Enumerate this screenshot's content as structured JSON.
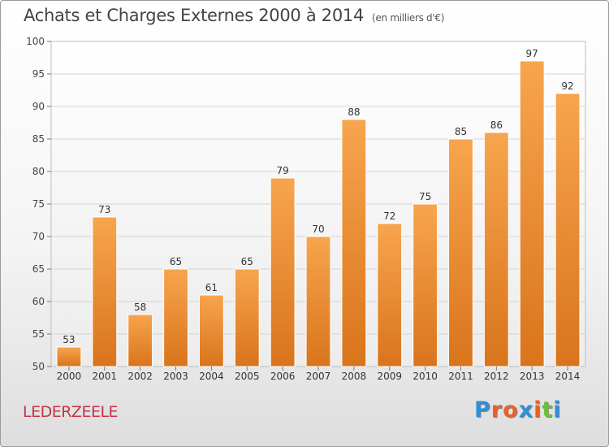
{
  "header": {
    "title": "Achats et Charges Externes 2000 à 2014",
    "subtitle": "(en milliers d'€)"
  },
  "commune": "LEDERZEELE",
  "logo": {
    "text": "Proxiti",
    "letter_colors": [
      "#2f8fd8",
      "#e8622a",
      "#e8622a",
      "#2f8fd8",
      "#e8622a",
      "#6cbf3a",
      "#2f8fd8"
    ]
  },
  "chart_data": {
    "type": "bar",
    "title": "Achats et Charges Externes 2000 à 2014",
    "subtitle": "(en milliers d'€)",
    "categories": [
      "2000",
      "2001",
      "2002",
      "2003",
      "2004",
      "2005",
      "2006",
      "2007",
      "2008",
      "2009",
      "2010",
      "2011",
      "2012",
      "2013",
      "2014"
    ],
    "values": [
      53,
      73,
      58,
      65,
      61,
      65,
      79,
      70,
      88,
      72,
      75,
      85,
      86,
      97,
      92
    ],
    "ylim": [
      50,
      100
    ],
    "yticks": [
      50,
      55,
      60,
      65,
      70,
      75,
      80,
      85,
      90,
      95,
      100
    ],
    "grid": true,
    "bar_color_top": "#f7a54e",
    "bar_color_bottom": "#d9741c"
  }
}
